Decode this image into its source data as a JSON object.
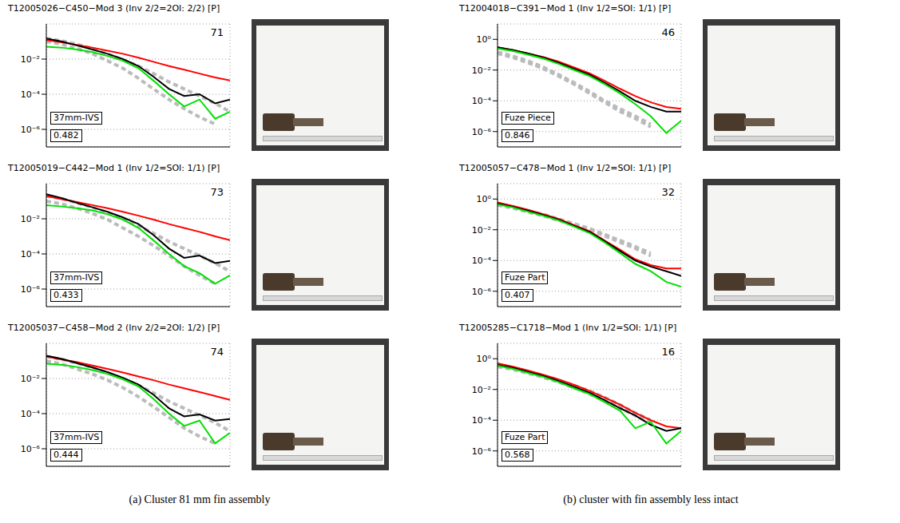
{
  "chart_data": [
    {
      "type": "line",
      "title": "T12005026−C450−Mod 3 (Inv 2/2=2OI: 2/2) [P]",
      "rank": 71,
      "label": "37mm-IVS",
      "score": 0.482,
      "log": true,
      "grid": true,
      "tick_labels": "y",
      "x": [
        0.1,
        0.16,
        0.25,
        0.4,
        0.63,
        1,
        1.6,
        2.5,
        4,
        6.3,
        10,
        16,
        25
      ],
      "xlim": [
        0.1,
        25
      ],
      "xticks": [
        0.25,
        1,
        4,
        16
      ],
      "ylim": [
        1e-07,
        1
      ],
      "yticks": [
        {
          "value": 1e-06,
          "label": "10⁻⁶"
        },
        {
          "value": 0.0001,
          "label": "10⁻⁴"
        },
        {
          "value": 0.01,
          "label": "10⁻²"
        }
      ],
      "series": [
        {
          "color": "#bbbbbb",
          "line_style": "dashed",
          "values": [
            0.15,
            0.11,
            0.07,
            0.04,
            0.02,
            0.009,
            0.004,
            0.0015,
            0.0005,
            0.0002,
            8e-05,
            3e-05,
            1e-05
          ]
        },
        {
          "color": "#bbbbbb",
          "line_style": "dashed",
          "values": [
            0.1,
            0.07,
            0.04,
            0.02,
            0.008,
            0.003,
            0.0008,
            0.0002,
            5e-05,
            1.5e-05,
            5e-06,
            2e-06,
            null
          ]
        },
        {
          "color": "#ff0000",
          "line_style": "solid",
          "values": [
            0.12,
            0.09,
            0.065,
            0.045,
            0.03,
            0.02,
            0.012,
            0.007,
            0.004,
            0.0025,
            0.0015,
            0.0009,
            0.0006
          ]
        },
        {
          "color": "#000000",
          "line_style": "solid",
          "values": [
            0.15,
            0.1,
            0.06,
            0.035,
            0.02,
            0.01,
            0.004,
            0.001,
            0.0002,
            8e-05,
            0.0001,
            3e-05,
            5e-05
          ]
        },
        {
          "color": "#00e000",
          "line_style": "solid",
          "values": [
            0.05,
            0.045,
            0.035,
            0.025,
            0.015,
            0.008,
            0.003,
            0.0006,
            0.0001,
            2e-05,
            5e-05,
            4e-06,
            1e-05
          ]
        }
      ]
    },
    {
      "type": "line",
      "title": "T12005019−C442−Mod 1 (Inv 1/2=SOI: 1/1) [P]",
      "rank": 73,
      "label": "37mm-IVS",
      "score": 0.433,
      "log": true,
      "grid": true,
      "tick_labels": "y",
      "x": [
        0.1,
        0.16,
        0.25,
        0.4,
        0.63,
        1,
        1.6,
        2.5,
        4,
        6.3,
        10,
        16,
        25
      ],
      "xlim": [
        0.1,
        25
      ],
      "xticks": [
        0.25,
        1,
        4,
        16
      ],
      "ylim": [
        1e-07,
        1
      ],
      "yticks": [
        {
          "value": 1e-06,
          "label": "10⁻⁶"
        },
        {
          "value": 0.0001,
          "label": "10⁻⁴"
        },
        {
          "value": 0.01,
          "label": "10⁻²"
        }
      ],
      "series": [
        {
          "color": "#bbbbbb",
          "line_style": "dashed",
          "values": [
            0.2,
            0.14,
            0.08,
            0.045,
            0.022,
            0.01,
            0.004,
            0.0015,
            0.0005,
            0.0002,
            8e-05,
            3e-05,
            1e-05
          ]
        },
        {
          "color": "#bbbbbb",
          "line_style": "dashed",
          "values": [
            0.1,
            0.07,
            0.04,
            0.02,
            0.009,
            0.003,
            0.001,
            0.0003,
            8e-05,
            2e-05,
            6e-06,
            2e-06,
            null
          ]
        },
        {
          "color": "#ff0000",
          "line_style": "solid",
          "values": [
            0.2,
            0.13,
            0.09,
            0.06,
            0.04,
            0.025,
            0.015,
            0.009,
            0.005,
            0.003,
            0.0018,
            0.001,
            0.0006
          ]
        },
        {
          "color": "#000000",
          "line_style": "solid",
          "values": [
            0.25,
            0.15,
            0.08,
            0.045,
            0.025,
            0.012,
            0.005,
            0.0012,
            0.0002,
            6e-05,
            8e-05,
            3e-05,
            4e-05
          ]
        },
        {
          "color": "#00e000",
          "line_style": "solid",
          "values": [
            0.06,
            0.05,
            0.04,
            0.03,
            0.018,
            0.009,
            0.003,
            0.0006,
            0.0001,
            2e-05,
            8e-06,
            2e-06,
            6e-06
          ]
        }
      ]
    },
    {
      "type": "line",
      "title": "T12005037−C458−Mod 2 (Inv 2/2=2OI: 1/2) [P]",
      "rank": 74,
      "label": "37mm-IVS",
      "score": 0.444,
      "log": true,
      "grid": true,
      "tick_labels": "y",
      "x": [
        0.1,
        0.16,
        0.25,
        0.4,
        0.63,
        1,
        1.6,
        2.5,
        4,
        6.3,
        10,
        16,
        25
      ],
      "xlim": [
        0.1,
        25
      ],
      "xticks": [
        0.25,
        1,
        4,
        16
      ],
      "ylim": [
        1e-07,
        1
      ],
      "yticks": [
        {
          "value": 1e-06,
          "label": "10⁻⁶"
        },
        {
          "value": 0.0001,
          "label": "10⁻⁴"
        },
        {
          "value": 0.01,
          "label": "10⁻²"
        }
      ],
      "series": [
        {
          "color": "#bbbbbb",
          "line_style": "dashed",
          "values": [
            0.18,
            0.12,
            0.075,
            0.042,
            0.021,
            0.01,
            0.004,
            0.0015,
            0.0005,
            0.0002,
            8e-05,
            3e-05,
            1e-05
          ]
        },
        {
          "color": "#bbbbbb",
          "line_style": "dashed",
          "values": [
            0.1,
            0.065,
            0.035,
            0.018,
            0.008,
            0.003,
            0.0009,
            0.00025,
            6e-05,
            1.5e-05,
            5e-06,
            2e-06,
            null
          ]
        },
        {
          "color": "#ff0000",
          "line_style": "solid",
          "values": [
            0.18,
            0.12,
            0.085,
            0.055,
            0.035,
            0.022,
            0.013,
            0.008,
            0.0045,
            0.0028,
            0.0017,
            0.001,
            0.0006
          ]
        },
        {
          "color": "#000000",
          "line_style": "solid",
          "values": [
            0.2,
            0.13,
            0.075,
            0.042,
            0.023,
            0.011,
            0.0045,
            0.0012,
            0.0002,
            7e-05,
            9e-05,
            4e-05,
            5e-05
          ]
        },
        {
          "color": "#00e000",
          "line_style": "solid",
          "values": [
            0.07,
            0.06,
            0.045,
            0.03,
            0.018,
            0.009,
            0.0035,
            0.0007,
            0.0001,
            2e-05,
            4e-05,
            2e-06,
            8e-06
          ]
        }
      ]
    },
    {
      "type": "line",
      "title": "T12004018−C391−Mod 1 (Inv 1/2=SOI: 1/1) [P]",
      "rank": 46,
      "label": "Fuze Piece",
      "score": 0.846,
      "log": true,
      "grid": true,
      "tick_labels": "y",
      "x": [
        0.1,
        0.16,
        0.25,
        0.4,
        0.63,
        1,
        1.6,
        2.5,
        4,
        6.3,
        10,
        16,
        25
      ],
      "xlim": [
        0.1,
        25
      ],
      "xticks": [
        0.25,
        1,
        4,
        16
      ],
      "ylim": [
        1e-07,
        10
      ],
      "yticks": [
        {
          "value": 1e-06,
          "label": "10⁻⁶"
        },
        {
          "value": 0.0001,
          "label": "10⁻⁴"
        },
        {
          "value": 0.01,
          "label": "10⁻²"
        },
        {
          "value": 1,
          "label": "10⁰"
        }
      ],
      "series": [
        {
          "color": "#bbbbbb",
          "line_style": "dashed",
          "values": [
            0.15,
            0.08,
            0.04,
            0.015,
            0.005,
            0.0015,
            0.0004,
            0.0001,
            3e-05,
            1e-05,
            3e-06,
            null,
            null
          ]
        },
        {
          "color": "#bbbbbb",
          "line_style": "dashed",
          "values": [
            0.12,
            0.065,
            0.03,
            0.012,
            0.004,
            0.0012,
            0.0003,
            8e-05,
            2e-05,
            7e-06,
            2e-06,
            null,
            null
          ]
        },
        {
          "color": "#ff0000",
          "line_style": "solid",
          "values": [
            0.3,
            0.2,
            0.12,
            0.07,
            0.035,
            0.015,
            0.006,
            0.002,
            0.0006,
            0.0002,
            8e-05,
            4e-05,
            3e-05
          ]
        },
        {
          "color": "#000000",
          "line_style": "solid",
          "values": [
            0.3,
            0.2,
            0.12,
            0.065,
            0.03,
            0.012,
            0.005,
            0.0015,
            0.0004,
            0.0001,
            4e-05,
            2e-05,
            2e-05
          ]
        },
        {
          "color": "#00e000",
          "line_style": "solid",
          "values": [
            0.25,
            0.17,
            0.1,
            0.055,
            0.025,
            0.01,
            0.004,
            0.0012,
            0.0003,
            6e-05,
            1e-05,
            8e-07,
            5e-06
          ]
        }
      ]
    },
    {
      "type": "line",
      "title": "T12005057−C478−Mod 1 (Inv 1/2=SOI: 1/1) [P]",
      "rank": 32,
      "label": "Fuze Part",
      "score": 0.407,
      "log": true,
      "grid": true,
      "tick_labels": "y",
      "x": [
        0.1,
        0.16,
        0.25,
        0.4,
        0.63,
        1,
        1.6,
        2.5,
        4,
        6.3,
        10,
        16,
        25
      ],
      "xlim": [
        0.1,
        25
      ],
      "xticks": [
        0.25,
        1,
        4,
        16
      ],
      "ylim": [
        1e-07,
        10
      ],
      "yticks": [
        {
          "value": 1e-06,
          "label": "10⁻⁶"
        },
        {
          "value": 0.0001,
          "label": "10⁻⁴"
        },
        {
          "value": 0.01,
          "label": "10⁻²"
        },
        {
          "value": 1,
          "label": "10⁰"
        }
      ],
      "series": [
        {
          "color": "#bbbbbb",
          "line_style": "dashed",
          "values": [
            0.5,
            0.3,
            0.17,
            0.1,
            0.05,
            0.025,
            0.012,
            0.005,
            0.002,
            0.0008,
            0.0003,
            null,
            null
          ]
        },
        {
          "color": "#bbbbbb",
          "line_style": "dashed",
          "values": [
            0.4,
            0.25,
            0.14,
            0.08,
            0.04,
            0.02,
            0.01,
            0.004,
            0.0015,
            0.0006,
            0.0002,
            null,
            null
          ]
        },
        {
          "color": "#ff0000",
          "line_style": "solid",
          "values": [
            0.6,
            0.35,
            0.2,
            0.1,
            0.05,
            0.02,
            0.008,
            0.002,
            0.0005,
            0.00012,
            5e-05,
            3e-05,
            3e-05
          ]
        },
        {
          "color": "#000000",
          "line_style": "solid",
          "values": [
            0.5,
            0.3,
            0.17,
            0.09,
            0.045,
            0.018,
            0.007,
            0.0018,
            0.0004,
            0.0001,
            4e-05,
            2e-05,
            1e-05
          ]
        },
        {
          "color": "#00e000",
          "line_style": "solid",
          "values": [
            0.45,
            0.28,
            0.15,
            0.08,
            0.04,
            0.016,
            0.006,
            0.0015,
            0.0003,
            6e-05,
            2e-05,
            4e-06,
            2e-06
          ]
        }
      ]
    },
    {
      "type": "line",
      "title": "T12005285−C1718−Mod 1 (Inv 1/2=SOI: 1/1) [P]",
      "rank": 16,
      "label": "Fuze Part",
      "score": 0.568,
      "log": true,
      "grid": true,
      "tick_labels": "y",
      "x": [
        0.1,
        0.16,
        0.25,
        0.4,
        0.63,
        1,
        1.6,
        2.5,
        4,
        6.3,
        10,
        16,
        25
      ],
      "xlim": [
        0.1,
        25
      ],
      "xticks": [
        0.25,
        1,
        4,
        16
      ],
      "ylim": [
        1e-07,
        10
      ],
      "yticks": [
        {
          "value": 1e-06,
          "label": "10⁻⁶"
        },
        {
          "value": 0.0001,
          "label": "10⁻⁴"
        },
        {
          "value": 0.01,
          "label": "10⁻²"
        },
        {
          "value": 1,
          "label": "10⁰"
        }
      ],
      "series": [
        {
          "color": "#bbbbbb",
          "line_style": "dashed",
          "values": [
            0.4,
            0.25,
            0.14,
            0.08,
            0.04,
            0.018,
            0.008,
            0.003,
            0.001,
            0.0003,
            0.0001,
            null,
            null
          ]
        },
        {
          "color": "#bbbbbb",
          "line_style": "dashed",
          "values": [
            0.3,
            0.2,
            0.11,
            0.06,
            0.03,
            0.013,
            0.005,
            0.0018,
            0.0006,
            0.0002,
            6e-05,
            null,
            null
          ]
        },
        {
          "color": "#ff0000",
          "line_style": "solid",
          "values": [
            0.5,
            0.3,
            0.17,
            0.09,
            0.045,
            0.02,
            0.008,
            0.003,
            0.001,
            0.0003,
            0.0001,
            4e-05,
            3e-05
          ]
        },
        {
          "color": "#000000",
          "line_style": "solid",
          "values": [
            0.4,
            0.25,
            0.14,
            0.075,
            0.035,
            0.015,
            0.006,
            0.002,
            0.0006,
            0.0002,
            5e-05,
            2e-05,
            3e-05
          ]
        },
        {
          "color": "#00e000",
          "line_style": "solid",
          "values": [
            0.35,
            0.22,
            0.12,
            0.065,
            0.03,
            0.012,
            0.005,
            0.0015,
            0.0004,
            3e-05,
            8e-05,
            3e-06,
            2e-05
          ]
        }
      ]
    }
  ],
  "captions": [
    "(a) Cluster 81 mm fin assembly",
    "(b) cluster with fin assembly less intact"
  ]
}
